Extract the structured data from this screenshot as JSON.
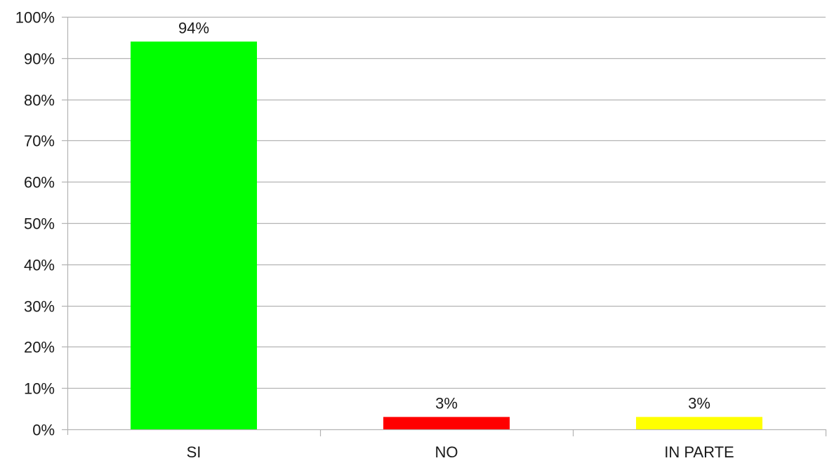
{
  "chart_data": {
    "type": "bar",
    "title": "",
    "xlabel": "",
    "ylabel": "",
    "categories": [
      "SI",
      "NO",
      "IN PARTE"
    ],
    "values": [
      94,
      3,
      3
    ],
    "data_labels": [
      "94%",
      "3%",
      "3%"
    ],
    "bar_colors": [
      "#00ff00",
      "#ff0000",
      "#ffff00"
    ],
    "ylim": [
      0,
      100
    ],
    "yticks": [
      0,
      10,
      20,
      30,
      40,
      50,
      60,
      70,
      80,
      90,
      100
    ],
    "ytick_labels": [
      "0%",
      "10%",
      "20%",
      "30%",
      "40%",
      "50%",
      "60%",
      "70%",
      "80%",
      "90%",
      "100%"
    ],
    "grid": true,
    "legend": "none",
    "colors": {
      "grid": "#b3b3b3",
      "axis": "#b3b3b3",
      "text": "#1a1a1a"
    }
  }
}
